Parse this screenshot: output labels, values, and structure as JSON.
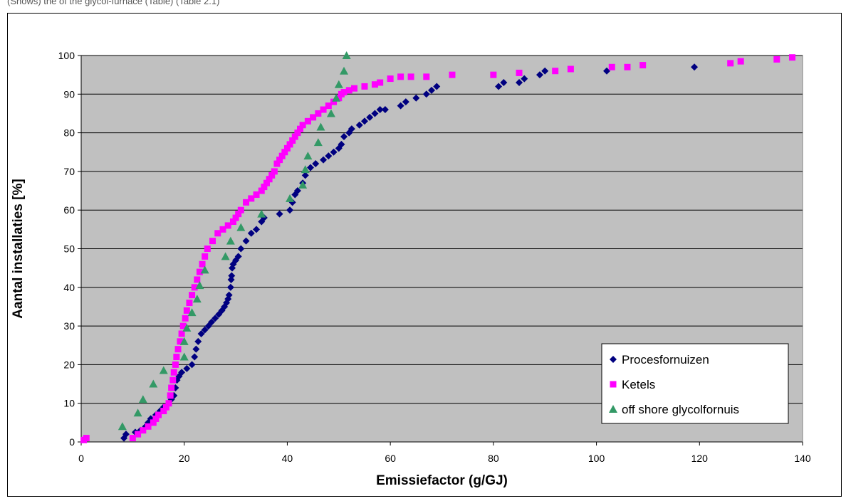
{
  "caption": "(Shows) the of the glycol-furnace (Table) (Table 2.1)",
  "chart_data": {
    "type": "scatter",
    "title": "",
    "xlabel": "Emissiefactor (g/GJ)",
    "ylabel": "Aantal installaties [%]",
    "xlim": [
      0,
      140
    ],
    "ylim": [
      0,
      100
    ],
    "xticks": [
      0,
      20,
      40,
      60,
      80,
      100,
      120,
      140
    ],
    "yticks": [
      0,
      10,
      20,
      30,
      40,
      50,
      60,
      70,
      80,
      90,
      100
    ],
    "grid": "horizontal",
    "legend_position": "bottom-right",
    "series": [
      {
        "name": "Procesfornuizen",
        "marker": "diamond",
        "color": "#000080",
        "points": [
          [
            8.3,
            1
          ],
          [
            8.7,
            2
          ],
          [
            10.5,
            2.5
          ],
          [
            11.5,
            3
          ],
          [
            12.5,
            4
          ],
          [
            13,
            5
          ],
          [
            13.5,
            6
          ],
          [
            14.5,
            7
          ],
          [
            15.3,
            8
          ],
          [
            16,
            9
          ],
          [
            17,
            10
          ],
          [
            17.5,
            11
          ],
          [
            18,
            12
          ],
          [
            18.3,
            14
          ],
          [
            18.6,
            16
          ],
          [
            19,
            17
          ],
          [
            19.5,
            18
          ],
          [
            20.5,
            19
          ],
          [
            21.5,
            20
          ],
          [
            22,
            22
          ],
          [
            22.3,
            24
          ],
          [
            22.7,
            26
          ],
          [
            23.3,
            28
          ],
          [
            24,
            29
          ],
          [
            24.7,
            30
          ],
          [
            25.3,
            31
          ],
          [
            26,
            32
          ],
          [
            26.7,
            33
          ],
          [
            27.3,
            34
          ],
          [
            27.8,
            35
          ],
          [
            28.2,
            36
          ],
          [
            28.5,
            37
          ],
          [
            28.7,
            38
          ],
          [
            29,
            40
          ],
          [
            29.1,
            42
          ],
          [
            29.2,
            43
          ],
          [
            29.3,
            45
          ],
          [
            29.5,
            46
          ],
          [
            30,
            47
          ],
          [
            30.5,
            48
          ],
          [
            31,
            50
          ],
          [
            32,
            52
          ],
          [
            33,
            54
          ],
          [
            34,
            55
          ],
          [
            35,
            57
          ],
          [
            35.5,
            58
          ],
          [
            38.5,
            59
          ],
          [
            40.5,
            60
          ],
          [
            41,
            62
          ],
          [
            41.5,
            64
          ],
          [
            42,
            65
          ],
          [
            43,
            67
          ],
          [
            43.5,
            69
          ],
          [
            44.5,
            71
          ],
          [
            45.5,
            72
          ],
          [
            47,
            73
          ],
          [
            48,
            74
          ],
          [
            49,
            75
          ],
          [
            50,
            76
          ],
          [
            50.5,
            77
          ],
          [
            51,
            79
          ],
          [
            52,
            80
          ],
          [
            52.5,
            81
          ],
          [
            54,
            82
          ],
          [
            55,
            83
          ],
          [
            56,
            84
          ],
          [
            57,
            85
          ],
          [
            58,
            86
          ],
          [
            59,
            86
          ],
          [
            62,
            87
          ],
          [
            63,
            88
          ],
          [
            65,
            89
          ],
          [
            67,
            90
          ],
          [
            68,
            91
          ],
          [
            69,
            92
          ],
          [
            81,
            92
          ],
          [
            82,
            93
          ],
          [
            85,
            93
          ],
          [
            86,
            94
          ],
          [
            89,
            95
          ],
          [
            90,
            96
          ],
          [
            102,
            96
          ],
          [
            119,
            97
          ]
        ]
      },
      {
        "name": "Ketels",
        "marker": "square",
        "color": "#ff00ff",
        "points": [
          [
            0.5,
            0.5
          ],
          [
            1,
            1
          ],
          [
            10,
            1
          ],
          [
            11,
            2
          ],
          [
            12,
            3
          ],
          [
            13,
            4
          ],
          [
            14,
            5
          ],
          [
            14.5,
            6
          ],
          [
            15,
            7
          ],
          [
            16,
            8
          ],
          [
            16.5,
            9
          ],
          [
            17,
            10
          ],
          [
            17.3,
            12
          ],
          [
            17.5,
            14
          ],
          [
            17.8,
            16
          ],
          [
            18,
            18
          ],
          [
            18.3,
            20
          ],
          [
            18.5,
            22
          ],
          [
            18.8,
            24
          ],
          [
            19.2,
            26
          ],
          [
            19.5,
            28
          ],
          [
            19.8,
            30
          ],
          [
            20.2,
            32
          ],
          [
            20.5,
            34
          ],
          [
            21,
            36
          ],
          [
            21.5,
            38
          ],
          [
            22,
            40
          ],
          [
            22.5,
            42
          ],
          [
            23,
            44
          ],
          [
            23.5,
            46
          ],
          [
            24,
            48
          ],
          [
            24.5,
            50
          ],
          [
            25.5,
            52
          ],
          [
            26.5,
            54
          ],
          [
            27.5,
            55
          ],
          [
            28.5,
            56
          ],
          [
            29.5,
            57
          ],
          [
            30,
            58
          ],
          [
            30.5,
            59
          ],
          [
            31,
            60
          ],
          [
            32,
            62
          ],
          [
            33,
            63
          ],
          [
            34,
            64
          ],
          [
            35,
            65
          ],
          [
            35.5,
            66
          ],
          [
            36,
            67
          ],
          [
            36.5,
            68
          ],
          [
            37,
            69
          ],
          [
            37.5,
            70
          ],
          [
            38,
            72
          ],
          [
            38.5,
            73
          ],
          [
            39,
            74
          ],
          [
            39.5,
            75
          ],
          [
            40,
            76
          ],
          [
            40.5,
            77
          ],
          [
            41,
            78
          ],
          [
            41.5,
            79
          ],
          [
            42,
            80
          ],
          [
            42.5,
            81
          ],
          [
            43,
            82
          ],
          [
            44,
            83
          ],
          [
            45,
            84
          ],
          [
            46,
            85
          ],
          [
            47,
            86
          ],
          [
            48,
            87
          ],
          [
            49,
            88
          ],
          [
            50,
            89
          ],
          [
            50.5,
            90
          ],
          [
            51,
            90.5
          ],
          [
            52,
            91
          ],
          [
            53,
            91.5
          ],
          [
            55,
            92
          ],
          [
            57,
            92.5
          ],
          [
            58,
            93
          ],
          [
            60,
            94
          ],
          [
            62,
            94.5
          ],
          [
            64,
            94.5
          ],
          [
            67,
            94.5
          ],
          [
            72,
            95
          ],
          [
            80,
            95
          ],
          [
            85,
            95.5
          ],
          [
            92,
            96
          ],
          [
            95,
            96.5
          ],
          [
            103,
            97
          ],
          [
            106,
            97
          ],
          [
            109,
            97.5
          ],
          [
            126,
            98
          ],
          [
            128,
            98.5
          ],
          [
            135,
            99
          ],
          [
            138,
            99.5
          ]
        ]
      },
      {
        "name": "off shore glycolfornuis",
        "marker": "triangle",
        "color": "#339966",
        "points": [
          [
            8,
            4
          ],
          [
            11,
            7.5
          ],
          [
            12,
            11
          ],
          [
            14,
            15
          ],
          [
            16,
            18.5
          ],
          [
            20,
            22
          ],
          [
            20,
            26
          ],
          [
            20.5,
            29.5
          ],
          [
            21.5,
            33.5
          ],
          [
            22.5,
            37
          ],
          [
            23,
            40.5
          ],
          [
            24,
            44.5
          ],
          [
            28,
            48
          ],
          [
            29,
            52
          ],
          [
            31,
            55.5
          ],
          [
            35,
            59
          ],
          [
            40.5,
            63
          ],
          [
            43,
            66.5
          ],
          [
            43.5,
            70.5
          ],
          [
            44,
            74
          ],
          [
            46,
            77.5
          ],
          [
            46.5,
            81.5
          ],
          [
            48.5,
            85
          ],
          [
            49.5,
            89
          ],
          [
            50,
            92.5
          ],
          [
            51,
            96
          ],
          [
            51.5,
            100
          ]
        ]
      }
    ]
  }
}
